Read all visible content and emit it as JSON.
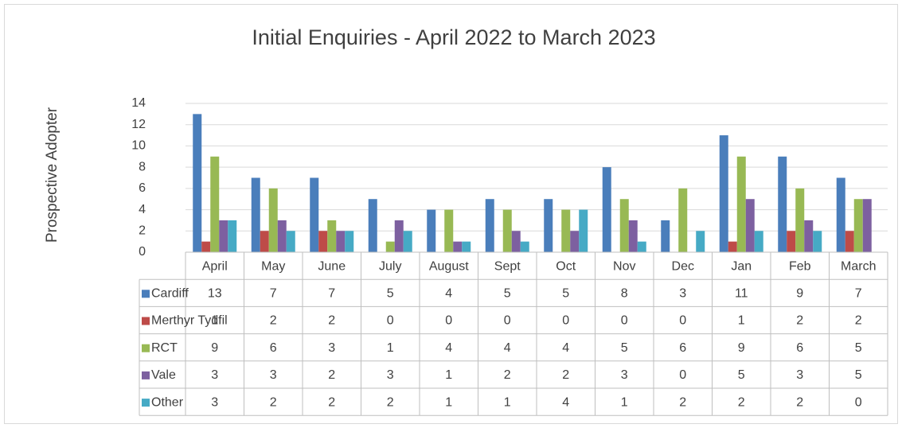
{
  "chart_data": {
    "type": "bar",
    "title": "Initial Enquiries - April 2022 to March 2023",
    "ylabel": "Prospective Adopter",
    "categories": [
      "April",
      "May",
      "June",
      "July",
      "August",
      "Sept",
      "Oct",
      "Nov",
      "Dec",
      "Jan",
      "Feb",
      "March"
    ],
    "series": [
      {
        "name": "Cardiff",
        "color": "#4a7ebb",
        "values": [
          13,
          7,
          7,
          5,
          4,
          5,
          5,
          8,
          3,
          11,
          9,
          7
        ]
      },
      {
        "name": "Merthyr Tydfil",
        "color": "#be4b48",
        "values": [
          1,
          2,
          2,
          0,
          0,
          0,
          0,
          0,
          0,
          1,
          2,
          2
        ]
      },
      {
        "name": "RCT",
        "color": "#98b954",
        "values": [
          9,
          6,
          3,
          1,
          4,
          4,
          4,
          5,
          6,
          9,
          6,
          5
        ]
      },
      {
        "name": "Vale",
        "color": "#7d60a0",
        "values": [
          3,
          3,
          2,
          3,
          1,
          2,
          2,
          3,
          0,
          5,
          3,
          5
        ]
      },
      {
        "name": "Other",
        "color": "#46aac5",
        "values": [
          3,
          2,
          2,
          2,
          1,
          1,
          4,
          1,
          2,
          2,
          2,
          0
        ]
      }
    ],
    "ylim": [
      0,
      14
    ],
    "yticks": [
      0,
      2,
      4,
      6,
      8,
      10,
      12,
      14
    ],
    "grid": true,
    "data_table": true
  }
}
